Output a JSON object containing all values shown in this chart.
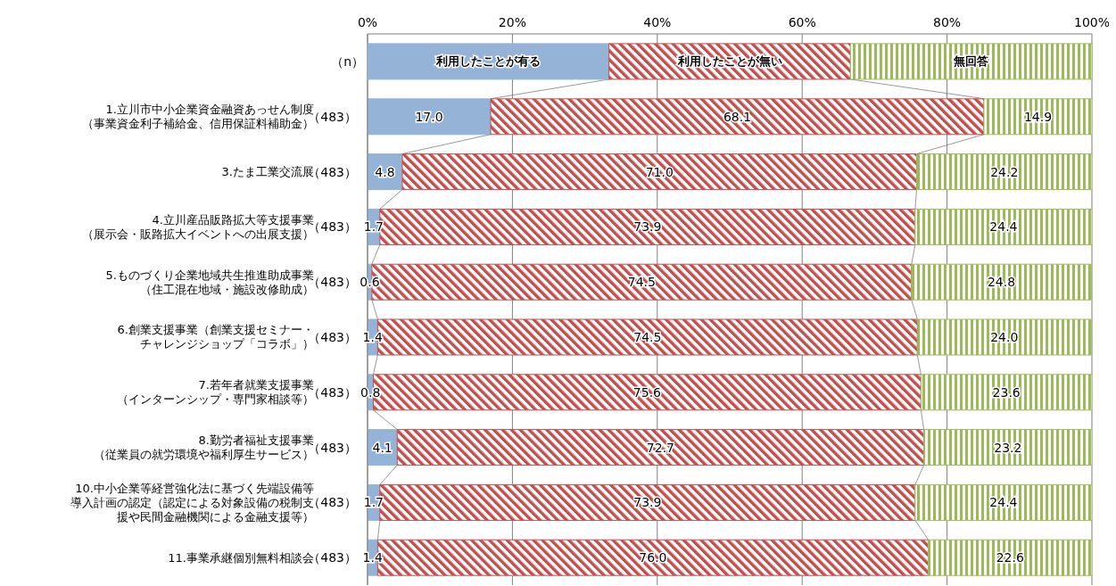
{
  "chart_data": {
    "type": "bar",
    "orientation": "horizontal",
    "stacked": true,
    "categories": [
      "1.立川市中小企業資金融資あっせん制度（事業資金利子補給金、信用保証料補助金）",
      "3.たま工業交流展",
      "4.立川産品販路拡大等支援事業（展示会・販路拡大イベントへの出展支援）",
      "5.ものづくり企業地域共生推進助成事業（住工混在地域・施設改修助成）",
      "6.創業支援事業（創業支援セミナー・チャレンジショップ「コラボ」）",
      "7.若年者就業支援事業（インターンシップ・専門家相談等）",
      "8.勤労者福祉支援事業（従業員の就労環境や福利厚生サービス）",
      "10.中小企業等経営強化法に基づく先端設備等導入計画の認定（認定による対象設備の税制支援や民間金融機関による金融支援等）",
      "11.事業承継個別無料相談会"
    ],
    "ylabel": "（n）",
    "annotations": [
      "（483）",
      "（483）",
      "（483）",
      "（483）",
      "（483）",
      "（483）",
      "（483）",
      "（483）",
      "（483）"
    ],
    "series": [
      {
        "name": "利用したことが有る",
        "color": "#95b3d7",
        "values": [
          17.0,
          4.8,
          1.7,
          0.6,
          1.4,
          0.8,
          4.1,
          1.7,
          1.4
        ],
        "value_labels": [
          "17.0",
          "4.8",
          "1.7",
          "0.6",
          "1.4",
          "0.8",
          "4.1",
          "1.7",
          "1.4"
        ]
      },
      {
        "name": "利用したことが無い",
        "color": "#c0504d",
        "values": [
          68.1,
          71.0,
          73.9,
          74.5,
          74.5,
          75.6,
          72.7,
          73.9,
          76.0
        ],
        "value_labels": [
          "68.1",
          "71.0",
          "73.9",
          "74.5",
          "74.5",
          "75.6",
          "72.7",
          "73.9",
          "76.0"
        ]
      },
      {
        "name": "無回答",
        "color": "#9bbb59",
        "values": [
          14.9,
          24.2,
          24.4,
          24.8,
          24.0,
          23.6,
          23.2,
          24.4,
          22.6
        ],
        "value_labels": [
          "14.9",
          "24.2",
          "24.4",
          "24.8",
          "24.0",
          "23.6",
          "23.2",
          "24.4",
          "22.6"
        ]
      }
    ],
    "xlim": [
      0,
      100
    ],
    "xticks": [
      {
        "value": 0,
        "label": "0%"
      },
      {
        "value": 20,
        "label": "20%"
      },
      {
        "value": 40,
        "label": "40%"
      },
      {
        "value": 60,
        "label": "60%"
      },
      {
        "value": 80,
        "label": "80%"
      },
      {
        "value": 100,
        "label": "100%"
      }
    ],
    "grid": "x",
    "legend": "top"
  }
}
